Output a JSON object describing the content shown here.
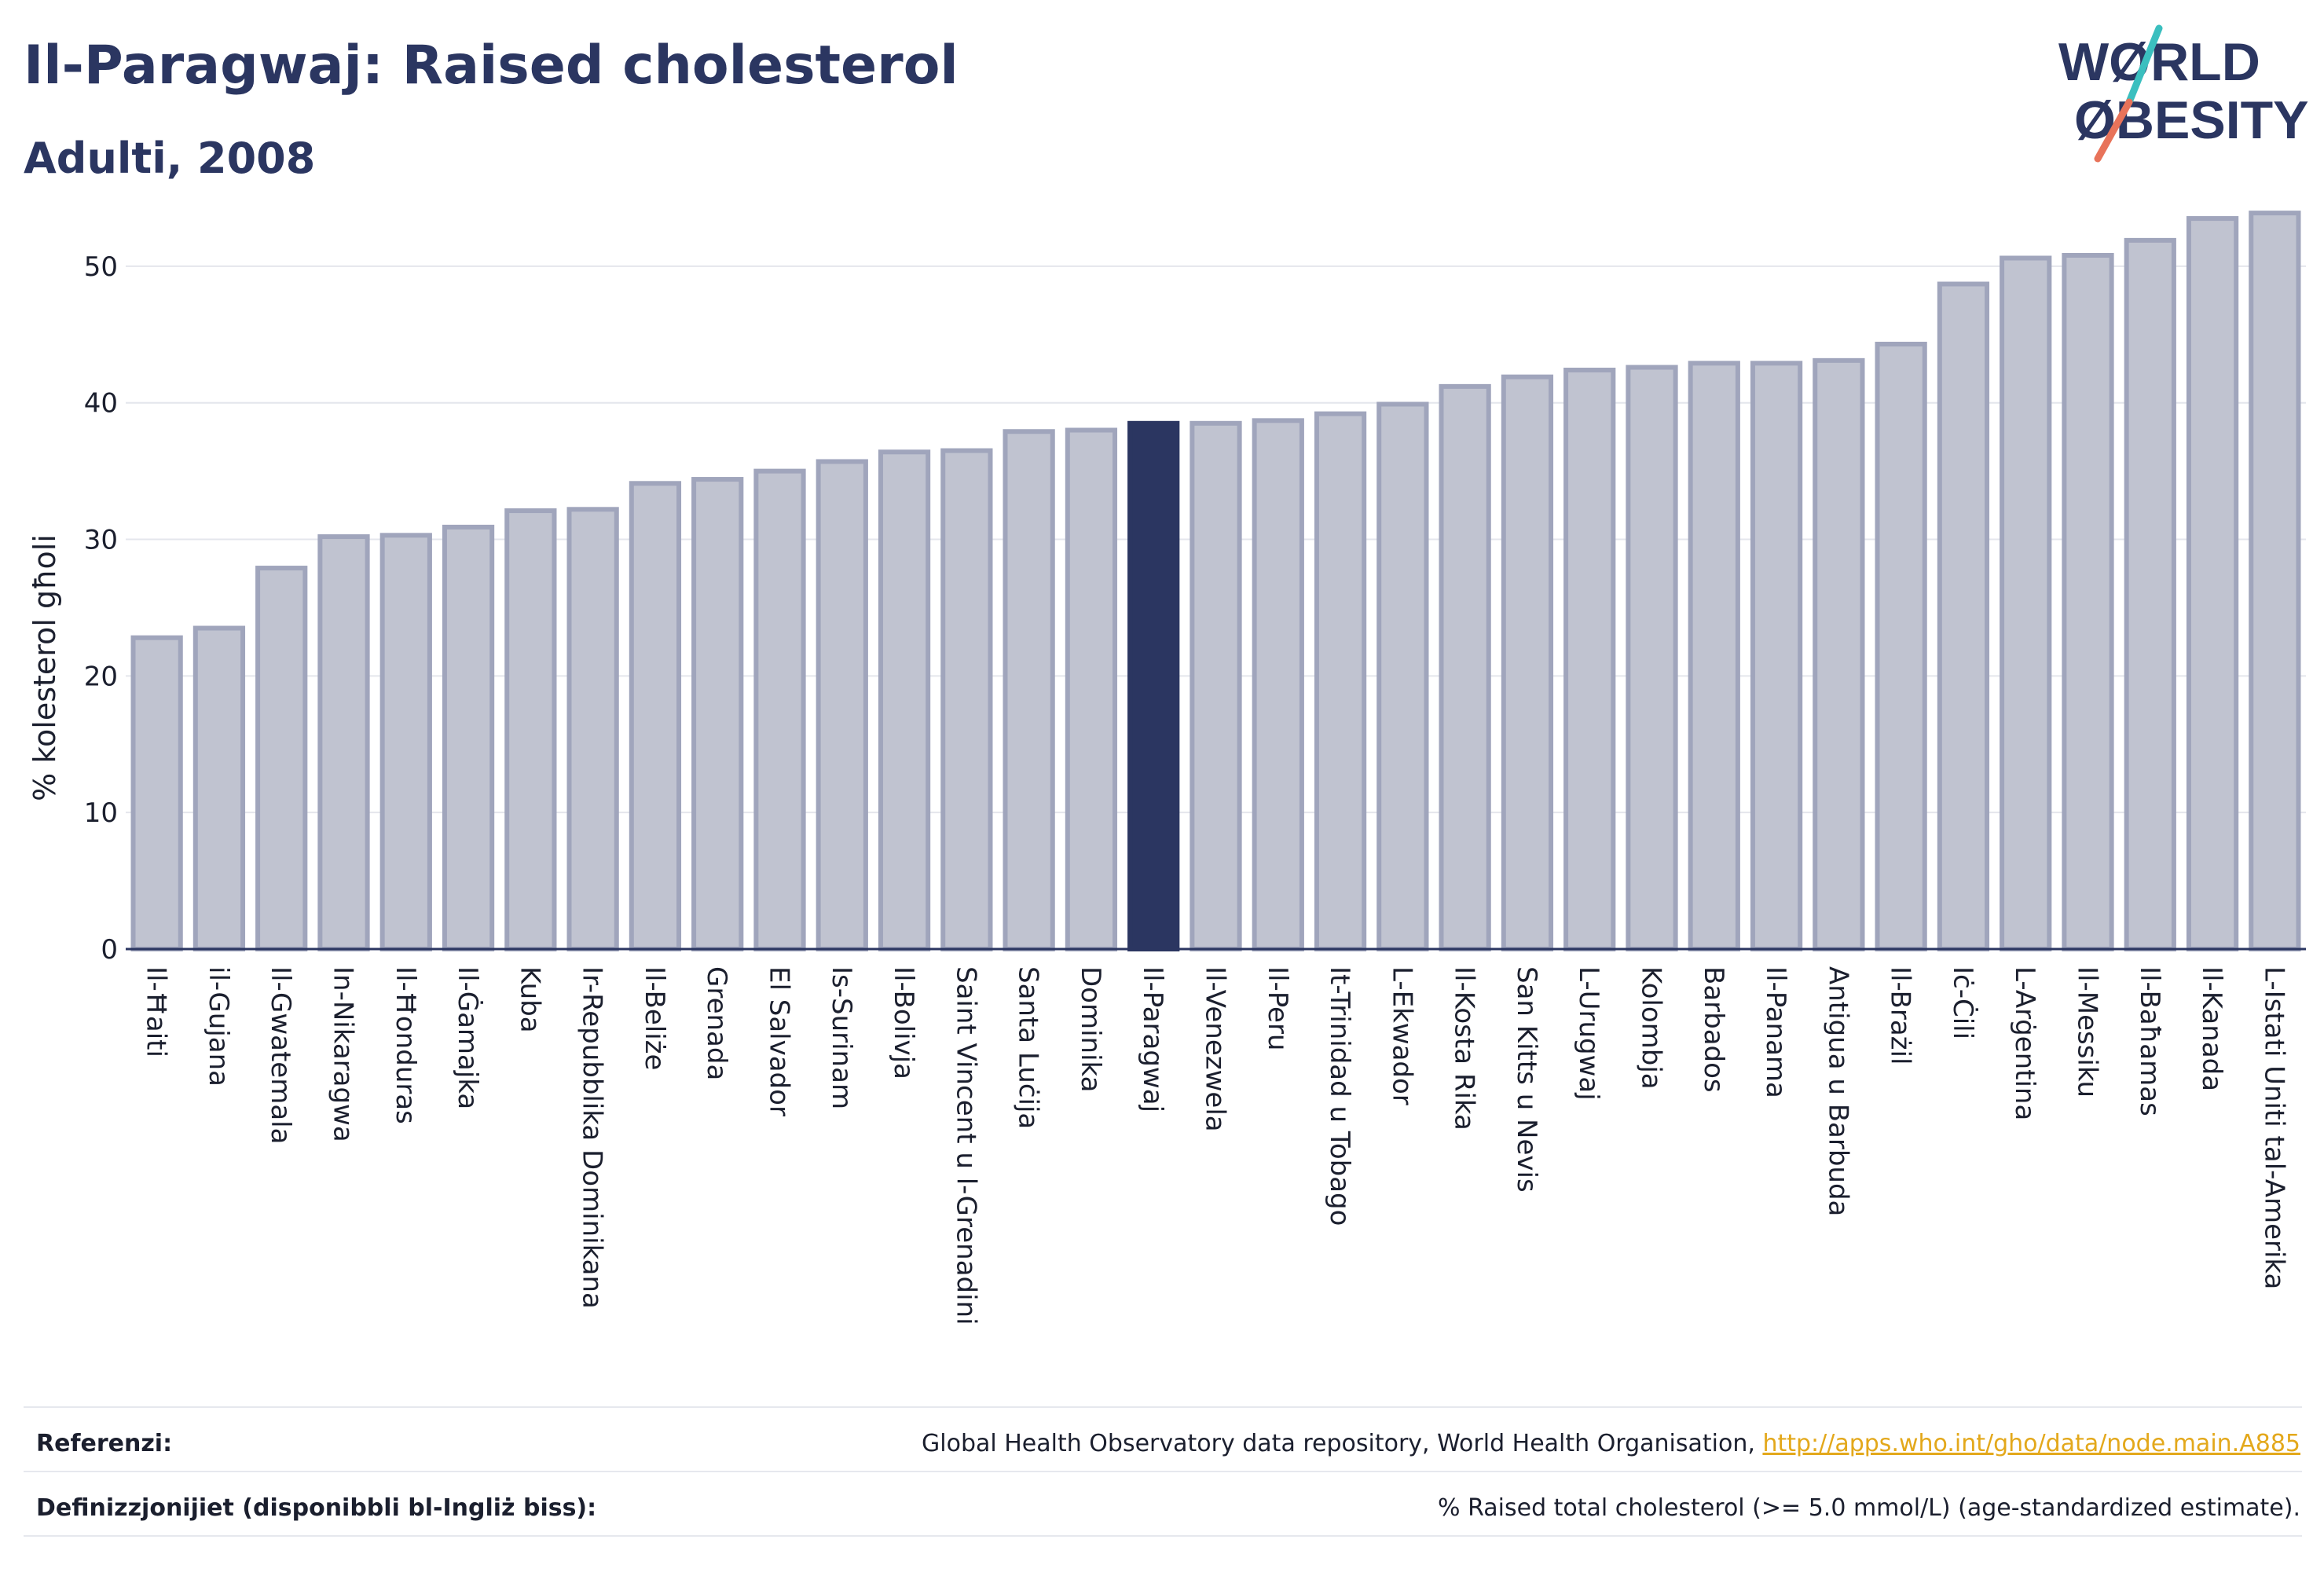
{
  "header": {
    "title": "Il-Paragwaj: Raised cholesterol",
    "subtitle": "Adulti, 2008"
  },
  "logo": {
    "line1": "WØRLD",
    "line2": "ØBESITY",
    "colors": {
      "text": "#2b3661",
      "slash_top": "#3bbfbf",
      "slash_bottom": "#e8735a"
    }
  },
  "chart_data": {
    "type": "bar",
    "ylabel": "% kolesterol għoli",
    "ylim": [
      0,
      55
    ],
    "yticks": [
      0,
      10,
      20,
      30,
      40,
      50
    ],
    "grid": true,
    "highlight": "Il-Paragwaj",
    "colors": {
      "bar": "#c0c3d0",
      "bar_border": "#a0a5bc",
      "highlight": "#2b3661"
    },
    "categories": [
      "Il-Ħaiti",
      "il-Gujana",
      "Il-Gwatemala",
      "In-Nikaragwa",
      "Il-Ħonduras",
      "Il-Ġamajka",
      "Kuba",
      "Ir-Repubblika Dominikana",
      "Il-Beliże",
      "Grenada",
      "El Salvador",
      "Is-Surinam",
      "Il-Bolivja",
      "Saint Vincent u l-Grenadini",
      "Santa Luċija",
      "Dominika",
      "Il-Paragwaj",
      "Il-Venezwela",
      "Il-Peru",
      "It-Trinidad u Tobago",
      "L-Ekwador",
      "Il-Kosta Rika",
      "San Kitts u Nevis",
      "L-Urugwaj",
      "Kolombja",
      "Barbados",
      "Il-Panama",
      "Antigua u Barbuda",
      "Il-Brażil",
      "Iċ-Ċili",
      "L-Arġentina",
      "Il-Messiku",
      "Il-Baħamas",
      "Il-Kanada",
      "L-Istati Uniti tal-Amerika"
    ],
    "values": [
      22.8,
      23.5,
      27.9,
      30.2,
      30.3,
      30.9,
      32.1,
      32.2,
      34.1,
      34.4,
      35.0,
      35.7,
      36.4,
      36.5,
      37.9,
      38.0,
      38.5,
      38.5,
      38.7,
      39.2,
      39.9,
      41.2,
      41.9,
      42.4,
      42.6,
      42.9,
      42.9,
      43.1,
      44.3,
      48.7,
      50.6,
      50.8,
      51.9,
      53.5,
      53.9
    ]
  },
  "footer": {
    "references_label": "Referenzi:",
    "references_text": "Global Health Observatory data repository, World Health Organisation, ",
    "references_link": "http://apps.who.int/gho/data/node.main.A885",
    "definitions_label": "Definizzjonijiet (disponibbli bl-Ingliż biss):",
    "definitions_text": "% Raised total cholesterol (>= 5.0 mmol/L) (age-standardized estimate)."
  }
}
